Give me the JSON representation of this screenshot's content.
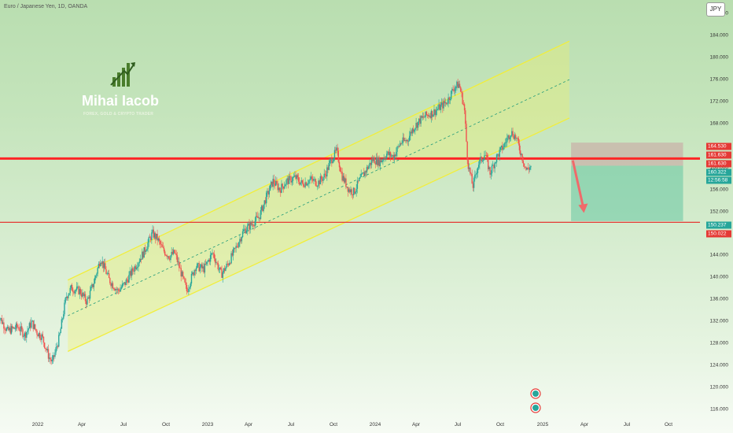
{
  "header": {
    "title": "Euro / Japanese Yen, 1D, OANDA",
    "currency_button": "JPY"
  },
  "logo": {
    "name": "Mihai Iacob",
    "tagline": "FOREX, GOLD & CRYPTO TRADER"
  },
  "price_tags": [
    {
      "value": "164.530",
      "color": "#e53935"
    },
    {
      "value": "161.630",
      "color": "#e53935"
    },
    {
      "value": "161.630",
      "color": "#e53935"
    },
    {
      "value": "160.322",
      "color": "#26a69a"
    },
    {
      "value": "12:56:58",
      "color": "#26a69a"
    },
    {
      "value": "150.237",
      "color": "#26a69a"
    },
    {
      "value": "150.022",
      "color": "#e53935"
    }
  ],
  "colors": {
    "up": "#26a69a",
    "down": "#ef5350",
    "channel": "#f2ee3a",
    "resistance": "#ff2626",
    "target": "#e53935"
  },
  "chart_data": {
    "type": "candlestick",
    "title": "Euro / Japanese Yen, 1D, OANDA",
    "x_axis": {
      "ticks": [
        "2022",
        "Apr",
        "Jul",
        "Oct",
        "2023",
        "Apr",
        "Jul",
        "Oct",
        "2024",
        "Apr",
        "Jul",
        "Oct",
        "2025",
        "Apr",
        "Jul",
        "Oct"
      ]
    },
    "y_axis": {
      "ticks": [
        116,
        120,
        124,
        128,
        132,
        136,
        140,
        144,
        148,
        152,
        156,
        160,
        164,
        168,
        172,
        176,
        180,
        184,
        188
      ],
      "tick_labels": [
        "116.000",
        "120.000",
        "124.000",
        "128.000",
        "132.000",
        "136.000",
        "140.000",
        "144.000",
        "148.000",
        "152.000",
        "156.000",
        "160.000",
        "164.000",
        "168.000",
        "172.000",
        "176.000",
        "180.000",
        "184.000",
        "188.000"
      ],
      "ylim": [
        114.8,
        190.5
      ]
    },
    "price_path": [
      {
        "t": 2021.9,
        "v": 133.5
      },
      {
        "t": 2021.96,
        "v": 130.2
      },
      {
        "t": 2022.02,
        "v": 131.0
      },
      {
        "t": 2022.06,
        "v": 129.5
      },
      {
        "t": 2022.1,
        "v": 131.8
      },
      {
        "t": 2022.13,
        "v": 130.0
      },
      {
        "t": 2022.16,
        "v": 129.2
      },
      {
        "t": 2022.2,
        "v": 125.5
      },
      {
        "t": 2022.22,
        "v": 124.5
      },
      {
        "t": 2022.26,
        "v": 129.0
      },
      {
        "t": 2022.3,
        "v": 136.5
      },
      {
        "t": 2022.33,
        "v": 138.0
      },
      {
        "t": 2022.38,
        "v": 137.5
      },
      {
        "t": 2022.42,
        "v": 135.5
      },
      {
        "t": 2022.46,
        "v": 139.0
      },
      {
        "t": 2022.5,
        "v": 143.5
      },
      {
        "t": 2022.55,
        "v": 139.5
      },
      {
        "t": 2022.6,
        "v": 137.5
      },
      {
        "t": 2022.64,
        "v": 138.8
      },
      {
        "t": 2022.7,
        "v": 142.0
      },
      {
        "t": 2022.75,
        "v": 144.5
      },
      {
        "t": 2022.8,
        "v": 148.0
      },
      {
        "t": 2022.83,
        "v": 147.0
      },
      {
        "t": 2022.86,
        "v": 145.0
      },
      {
        "t": 2022.9,
        "v": 143.8
      },
      {
        "t": 2022.93,
        "v": 144.5
      },
      {
        "t": 2022.97,
        "v": 140.5
      },
      {
        "t": 2023.0,
        "v": 137.5
      },
      {
        "t": 2023.05,
        "v": 142.0
      },
      {
        "t": 2023.1,
        "v": 141.5
      },
      {
        "t": 2023.15,
        "v": 144.5
      },
      {
        "t": 2023.2,
        "v": 140.5
      },
      {
        "t": 2023.24,
        "v": 142.5
      },
      {
        "t": 2023.28,
        "v": 145.0
      },
      {
        "t": 2023.33,
        "v": 148.5
      },
      {
        "t": 2023.37,
        "v": 149.5
      },
      {
        "t": 2023.42,
        "v": 151.0
      },
      {
        "t": 2023.46,
        "v": 154.5
      },
      {
        "t": 2023.5,
        "v": 157.5
      },
      {
        "t": 2023.54,
        "v": 156.0
      },
      {
        "t": 2023.58,
        "v": 157.5
      },
      {
        "t": 2023.63,
        "v": 158.2
      },
      {
        "t": 2023.67,
        "v": 157.0
      },
      {
        "t": 2023.72,
        "v": 157.8
      },
      {
        "t": 2023.76,
        "v": 157.2
      },
      {
        "t": 2023.8,
        "v": 158.5
      },
      {
        "t": 2023.84,
        "v": 161.5
      },
      {
        "t": 2023.87,
        "v": 163.0
      },
      {
        "t": 2023.9,
        "v": 158.5
      },
      {
        "t": 2023.94,
        "v": 156.0
      },
      {
        "t": 2023.97,
        "v": 155.5
      },
      {
        "t": 2024.0,
        "v": 157.5
      },
      {
        "t": 2024.04,
        "v": 159.5
      },
      {
        "t": 2024.08,
        "v": 161.5
      },
      {
        "t": 2024.12,
        "v": 161.0
      },
      {
        "t": 2024.16,
        "v": 162.5
      },
      {
        "t": 2024.2,
        "v": 162.0
      },
      {
        "t": 2024.24,
        "v": 164.5
      },
      {
        "t": 2024.28,
        "v": 165.0
      },
      {
        "t": 2024.31,
        "v": 167.0
      },
      {
        "t": 2024.35,
        "v": 168.5
      },
      {
        "t": 2024.39,
        "v": 169.5
      },
      {
        "t": 2024.43,
        "v": 170.0
      },
      {
        "t": 2024.47,
        "v": 171.0
      },
      {
        "t": 2024.51,
        "v": 172.0
      },
      {
        "t": 2024.55,
        "v": 174.5
      },
      {
        "t": 2024.58,
        "v": 175.2
      },
      {
        "t": 2024.61,
        "v": 171.0
      },
      {
        "t": 2024.63,
        "v": 161.0
      },
      {
        "t": 2024.66,
        "v": 156.5
      },
      {
        "t": 2024.69,
        "v": 160.5
      },
      {
        "t": 2024.73,
        "v": 162.5
      },
      {
        "t": 2024.76,
        "v": 159.0
      },
      {
        "t": 2024.8,
        "v": 162.0
      },
      {
        "t": 2024.84,
        "v": 164.0
      },
      {
        "t": 2024.88,
        "v": 166.5
      },
      {
        "t": 2024.91,
        "v": 165.5
      },
      {
        "t": 2024.94,
        "v": 162.5
      },
      {
        "t": 2024.97,
        "v": 159.5
      },
      {
        "t": 2025.0,
        "v": 160.3
      }
    ],
    "annotations": {
      "channel": {
        "upper": [
          [
            2022.31,
            139.5
          ],
          [
            2025.22,
            183.0
          ]
        ],
        "lower": [
          [
            2022.31,
            126.5
          ],
          [
            2025.22,
            169.0
          ]
        ],
        "mid": [
          [
            2022.31,
            133.0
          ],
          [
            2025.22,
            176.0
          ]
        ]
      },
      "resistance_level": 161.63,
      "target_level": 150.02,
      "short_position": {
        "start": 2025.23,
        "end": 2025.88,
        "entry": 160.32,
        "stop": 164.53,
        "target": 150.24
      },
      "projection_arrow": {
        "from": [
          2025.24,
          161.3
        ],
        "to": [
          2025.3,
          152.0
        ]
      }
    }
  }
}
